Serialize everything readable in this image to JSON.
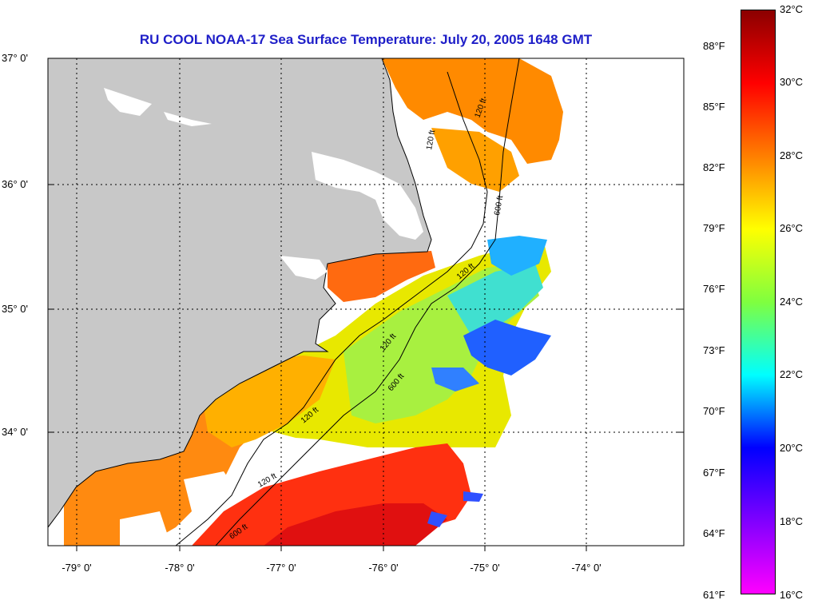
{
  "title": "RU COOL  NOAA-17  Sea Surface Temperature:  July 20, 2005 1648 GMT",
  "map": {
    "lat_ticks": [
      "37° 0'",
      "36° 0'",
      "35° 0'",
      "34° 0'"
    ],
    "lon_ticks": [
      "-79° 0'",
      "-78° 0'",
      "-77° 0'",
      "-76° 0'",
      "-75° 0'",
      "-74° 0'"
    ],
    "contour_labels": [
      "120 ft",
      "120 ft",
      "600 ft",
      "120 ft",
      "120 ft",
      "600 ft",
      "120 ft",
      "120 ft",
      "600 ft"
    ],
    "colors": {
      "land": "#c8c8c8",
      "cloud": "#ffffff",
      "grid": "#000000"
    }
  },
  "colorbar": {
    "fahrenheit_labels": [
      "88°F",
      "85°F",
      "82°F",
      "79°F",
      "76°F",
      "73°F",
      "70°F",
      "67°F",
      "64°F",
      "61°F"
    ],
    "celsius_labels": [
      "32°C",
      "30°C",
      "28°C",
      "26°C",
      "24°C",
      "22°C",
      "20°C",
      "18°C",
      "16°C"
    ],
    "gradient_colors": [
      "#8b0000",
      "#ff0000",
      "#ff7f00",
      "#ffff00",
      "#7fff3f",
      "#00ffff",
      "#0000ff",
      "#7f00ff",
      "#ff00ff"
    ]
  }
}
